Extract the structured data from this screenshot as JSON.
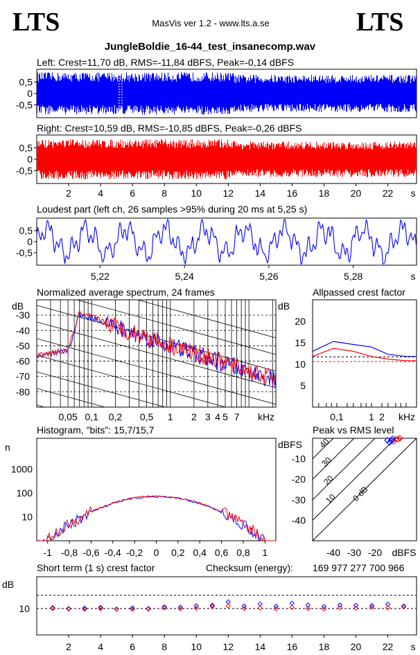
{
  "header": {
    "logo_left": "LTS",
    "logo_right": "LTS",
    "app_title": "MasVis ver 1.2 - www.lts.a.se",
    "file_name": "JungleBoldie_16-44_test_insanecomp.wav"
  },
  "colors": {
    "left": "#0000ff",
    "right": "#ff0000",
    "grid": "#000000"
  },
  "chart_data": [
    {
      "id": "left",
      "type": "area",
      "title": "Left: Crest=11,70 dB, RMS=-11,84 dBFS, Peak=-0,14 dBFS",
      "yticks": [
        "0,5",
        "0",
        "-0,5"
      ],
      "ylim": [
        -1,
        1
      ],
      "marker_at_s": 5.25
    },
    {
      "id": "right",
      "type": "area",
      "title": "Right: Crest=10,59 dB, RMS=-10,85 dBFS, Peak=-0,26 dBFS",
      "yticks": [
        "0,5",
        "0",
        "-0,5"
      ],
      "ylim": [
        -1,
        1
      ],
      "xticks": [
        "2",
        "4",
        "6",
        "8",
        "10",
        "12",
        "14",
        "16",
        "18",
        "20",
        "22"
      ],
      "xunit": "s",
      "xlim": [
        0,
        23.8
      ]
    },
    {
      "id": "loudest",
      "type": "line",
      "title": "Loudest part (left  ch, 26 samples >95% during 20 ms at 5,25 s)",
      "yticks": [
        "0,5",
        "0",
        "-0,5"
      ],
      "ylim": [
        -1,
        1
      ],
      "xticks": [
        "5,22",
        "5,24",
        "5,26",
        "5,28"
      ],
      "xunit": "s",
      "xlim": [
        5.205,
        5.295
      ]
    },
    {
      "id": "spectrum",
      "type": "line",
      "title": "Normalized average spectrum, 24 frames",
      "ylabel": "dB",
      "yticks": [
        "-30",
        "-40",
        "-50",
        "-60",
        "-70",
        "-80"
      ],
      "ylim": [
        -90,
        -20
      ],
      "xticks": [
        "0,05",
        "0,1",
        "0,2",
        "0,5",
        "1",
        "2",
        "3",
        "4",
        "5",
        "7"
      ],
      "xunit": "kHz",
      "xlim": [
        0.02,
        22
      ]
    },
    {
      "id": "allpassed_crest",
      "type": "line",
      "title": "Allpassed crest factor",
      "ylabel": "dB",
      "yticks": [
        "20",
        "15",
        "10",
        "5"
      ],
      "ylim": [
        0,
        25
      ],
      "xticks": [
        "0,1",
        "1",
        "2"
      ],
      "xunit": "kHz",
      "series": [
        {
          "color": "#0000ff",
          "x": [
            0.02,
            0.08,
            0.3,
            1,
            3,
            10,
            20
          ],
          "y": [
            13.0,
            15.3,
            14.6,
            14.0,
            12.3,
            11.8,
            11.8
          ]
        },
        {
          "color": "#ff0000",
          "x": [
            0.02,
            0.08,
            0.3,
            1,
            3,
            10,
            20
          ],
          "y": [
            11.8,
            13.7,
            13.0,
            11.8,
            11.2,
            10.8,
            10.8
          ]
        }
      ],
      "reference_lines": [
        {
          "color": "#000000",
          "y": 11.7
        },
        {
          "color": "#ff0000",
          "y": 10.6
        }
      ]
    },
    {
      "id": "histogram",
      "type": "line",
      "title": "Histogram, \"bits\": 15,7/15,7",
      "ylabel": "n",
      "yticks": [
        "1000",
        "100",
        "10"
      ],
      "yscale": "log",
      "xticks": [
        "-1",
        "-0,8",
        "-0,6",
        "-0,4",
        "-0,2",
        "0",
        "0,2",
        "0,4",
        "0,6",
        "0,8",
        "1"
      ],
      "xlim": [
        -1.1,
        1.1
      ]
    },
    {
      "id": "peak_vs_rms",
      "type": "scatter",
      "title": "Peak vs RMS level",
      "ylabel": "dBFS",
      "yticks": [
        "-10",
        "-20",
        "-30",
        "-40"
      ],
      "ylim": [
        -50,
        0
      ],
      "xticks": [
        "-40",
        "-30",
        "-20"
      ],
      "xunit": "dBFS",
      "xlim": [
        -50,
        0
      ],
      "diagonal_labels": [
        "40",
        "30",
        "20",
        "10",
        "0 dB"
      ],
      "points": [
        {
          "color": "#ff0000",
          "x": -8,
          "y": 0.0
        },
        {
          "color": "#ff0000",
          "x": -9,
          "y": -0.5
        },
        {
          "color": "#ff0000",
          "x": -10,
          "y": -0.4
        },
        {
          "color": "#ff0000",
          "x": -11,
          "y": -1.5
        },
        {
          "color": "#0000ff",
          "x": -12,
          "y": -1.2
        },
        {
          "color": "#0000ff",
          "x": -13,
          "y": -2.0
        },
        {
          "color": "#0000ff",
          "x": -11.5,
          "y": -0.2
        },
        {
          "color": "#0000ff",
          "x": -14,
          "y": -1.0
        }
      ]
    },
    {
      "id": "short_term_crest",
      "type": "scatter",
      "title": "Short term (1 s) crest factor",
      "checksum_label": "Checksum (energy):",
      "checksum_value": "169 977 277 700 966",
      "ylabel": "dB",
      "yticks": [
        "10"
      ],
      "ylim": [
        0,
        22
      ],
      "xticks": [
        "2",
        "4",
        "6",
        "8",
        "10",
        "12",
        "14",
        "16",
        "18",
        "20",
        "22"
      ],
      "xunit": "s",
      "xlim": [
        0,
        23.8
      ],
      "reference_lines": [
        {
          "y": 15
        },
        {
          "y": 10
        }
      ],
      "series": [
        {
          "color": "#0000ff",
          "x": [
            1,
            2,
            3,
            4,
            5,
            6,
            7,
            8,
            9,
            10,
            11,
            12,
            13,
            14,
            15,
            16,
            17,
            18,
            19,
            20,
            21,
            22,
            23
          ],
          "y": [
            10.3,
            10.0,
            10.1,
            10.4,
            9.8,
            10.2,
            10.0,
            10.6,
            10.5,
            11.0,
            11.2,
            12.5,
            10.9,
            11.7,
            10.8,
            12.0,
            11.3,
            10.7,
            11.3,
            11.2,
            11.1,
            11.6,
            10.9
          ]
        },
        {
          "color": "#ff0000",
          "x": [
            1,
            2,
            3,
            4,
            5,
            6,
            7,
            8,
            9,
            10,
            11,
            12,
            13,
            14,
            15,
            16,
            17,
            18,
            19,
            20,
            21,
            22,
            23
          ],
          "y": [
            10.0,
            9.8,
            9.7,
            10.0,
            9.7,
            9.7,
            9.8,
            10.2,
            9.9,
            10.1,
            10.8,
            11.0,
            10.0,
            10.2,
            9.9,
            10.4,
            10.0,
            9.8,
            10.3,
            10.1,
            10.5,
            10.3,
            10.6
          ]
        }
      ]
    }
  ]
}
